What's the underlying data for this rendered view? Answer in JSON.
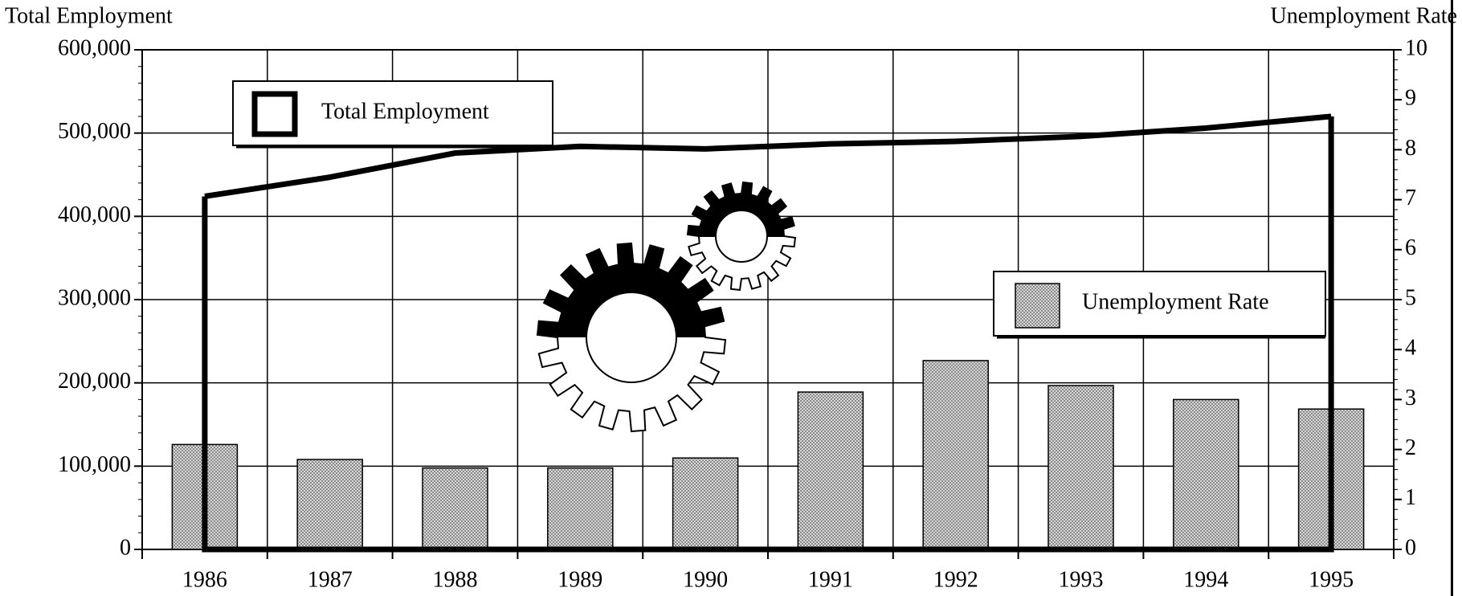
{
  "chart_data": {
    "type": "combo",
    "y_label": "Total Employment",
    "y2_label": "Unemployment Rate",
    "categories": [
      "1986",
      "1987",
      "1988",
      "1989",
      "1990",
      "1991",
      "1992",
      "1993",
      "1994",
      "1995"
    ],
    "series": [
      {
        "name": "Total Employment",
        "type": "line",
        "color": "#000000",
        "values": [
          424000,
          447000,
          476000,
          484000,
          481000,
          487000,
          490000,
          496000,
          506000,
          520000
        ]
      },
      {
        "name": "Unemployment Rate",
        "type": "bar",
        "axis": "y2",
        "color": "#8a8a8a",
        "values": [
          2.1,
          1.8,
          1.63,
          1.63,
          1.83,
          3.15,
          3.78,
          3.28,
          3.0,
          2.81
        ]
      }
    ],
    "ylim": [
      0,
      600000
    ],
    "yticks": [
      0,
      {
        "value": 100000,
        "label": "100,000"
      },
      {
        "value": 200000,
        "label": "200,000"
      },
      {
        "value": 300000,
        "label": "300,000"
      },
      {
        "value": 400000,
        "label": "400,000"
      },
      {
        "value": 500000,
        "label": "500,000"
      },
      {
        "value": 600000,
        "label": "600,000"
      }
    ],
    "y2lim": [
      0,
      10
    ],
    "y2ticks": [
      0,
      1,
      2,
      3,
      4,
      5,
      6,
      7,
      8,
      9,
      10
    ],
    "grid": true
  }
}
